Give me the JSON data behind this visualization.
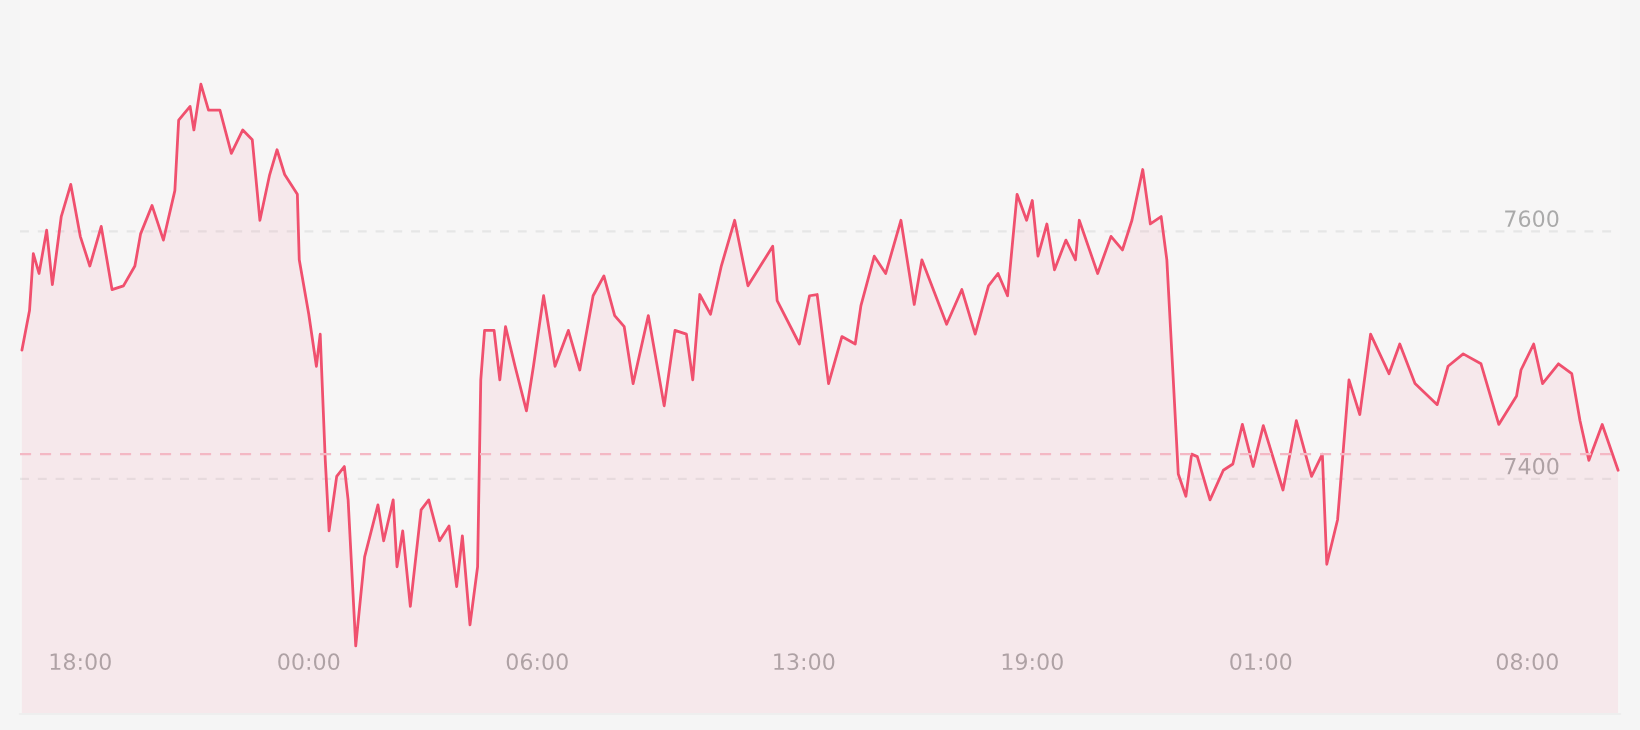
{
  "chart_data": {
    "type": "area",
    "x": [
      "2000-01-01T16:28",
      "2000-01-01T16:40",
      "2000-01-01T16:46",
      "2000-01-01T16:55",
      "2000-01-01T17:07",
      "2000-01-01T17:16",
      "2000-01-01T17:30",
      "2000-01-01T17:45",
      "2000-01-01T18:00",
      "2000-01-01T18:15",
      "2000-01-01T18:33",
      "2000-01-01T18:50",
      "2000-01-01T19:08",
      "2000-01-01T19:26",
      "2000-01-01T19:35",
      "2000-01-01T19:53",
      "2000-01-01T20:11",
      "2000-01-01T20:29",
      "2000-01-01T20:35",
      "2000-01-01T20:53",
      "2000-01-01T20:59",
      "2000-01-01T21:10",
      "2000-01-01T21:22",
      "2000-01-01T21:40",
      "2000-01-01T21:58",
      "2000-01-01T22:16",
      "2000-01-01T22:31",
      "2000-01-01T22:43",
      "2000-01-01T22:58",
      "2000-01-01T23:10",
      "2000-01-01T23:22",
      "2000-01-01T23:42",
      "2000-01-01T23:45",
      "2000-01-02T00:00",
      "2000-01-02T00:12",
      "2000-01-02T00:18",
      "2000-01-02T00:26",
      "2000-01-02T00:32",
      "2000-01-02T00:44",
      "2000-01-02T00:56",
      "2000-01-02T01:02",
      "2000-01-02T01:14",
      "2000-01-02T01:28",
      "2000-01-02T01:49",
      "2000-01-02T01:58",
      "2000-01-02T02:13",
      "2000-01-02T02:19",
      "2000-01-02T02:28",
      "2000-01-02T02:40",
      "2000-01-02T02:57",
      "2000-01-02T03:09",
      "2000-01-02T03:26",
      "2000-01-02T03:41",
      "2000-01-02T03:53",
      "2000-01-02T04:02",
      "2000-01-02T04:14",
      "2000-01-02T04:26",
      "2000-01-02T04:31",
      "2000-01-02T04:37",
      "2000-01-02T04:52",
      "2000-01-02T05:01",
      "2000-01-02T05:10",
      "2000-01-02T05:25",
      "2000-01-02T05:43",
      "2000-01-02T05:54",
      "2000-01-02T06:10",
      "2000-01-02T06:28",
      "2000-01-02T06:49",
      "2000-01-02T07:07",
      "2000-01-02T07:28",
      "2000-01-02T07:45",
      "2000-01-02T08:02",
      "2000-01-02T08:17",
      "2000-01-02T08:31",
      "2000-01-02T08:55",
      "2000-01-02T09:20",
      "2000-01-02T09:37",
      "2000-01-02T09:55",
      "2000-01-02T10:05",
      "2000-01-02T10:16",
      "2000-01-02T10:33",
      "2000-01-02T10:50",
      "2000-01-02T11:11",
      "2000-01-02T11:32",
      "2000-01-02T12:11",
      "2000-01-02T12:18",
      "2000-01-02T12:53",
      "2000-01-02T13:09",
      "2000-01-02T13:21",
      "2000-01-02T13:39",
      "2000-01-02T14:00",
      "2000-01-02T14:21",
      "2000-01-02T14:30",
      "2000-01-02T14:51",
      "2000-01-02T15:09",
      "2000-01-02T15:33",
      "2000-01-02T15:54",
      "2000-01-02T16:06",
      "2000-01-02T16:45",
      "2000-01-02T17:09",
      "2000-01-02T17:30",
      "2000-01-02T17:51",
      "2000-01-02T18:06",
      "2000-01-02T18:21",
      "2000-01-02T18:36",
      "2000-01-02T18:51",
      "2000-01-02T19:00",
      "2000-01-02T19:09",
      "2000-01-02T19:23",
      "2000-01-02T19:35",
      "2000-01-02T19:53",
      "2000-01-02T20:08",
      "2000-01-02T20:14",
      "2000-01-02T20:43",
      "2000-01-02T21:04",
      "2000-01-02T21:22",
      "2000-01-02T21:37",
      "2000-01-02T21:54",
      "2000-01-02T22:06",
      "2000-01-02T22:23",
      "2000-01-02T22:32",
      "2000-01-02T22:41",
      "2000-01-02T22:50",
      "2000-01-02T23:02",
      "2000-01-02T23:11",
      "2000-01-02T23:20",
      "2000-01-02T23:40",
      "2000-01-03T00:01",
      "2000-01-03T00:16",
      "2000-01-03T00:31",
      "2000-01-03T00:48",
      "2000-01-03T01:04",
      "2000-01-03T01:35",
      "2000-01-03T01:56",
      "2000-01-03T02:20",
      "2000-01-03T02:37",
      "2000-01-03T02:44",
      "2000-01-03T03:01",
      "2000-01-03T03:19",
      "2000-01-03T03:36",
      "2000-01-03T03:53",
      "2000-01-03T04:22",
      "2000-01-03T04:39",
      "2000-01-03T05:03",
      "2000-01-03T05:38",
      "2000-01-03T05:55",
      "2000-01-03T06:19",
      "2000-01-03T06:47",
      "2000-01-03T07:15",
      "2000-01-03T07:43",
      "2000-01-03T07:50",
      "2000-01-03T08:10",
      "2000-01-03T08:24",
      "2000-01-03T08:49",
      "2000-01-03T09:10",
      "2000-01-03T09:23",
      "2000-01-03T09:37",
      "2000-01-03T09:58",
      "2000-01-03T10:23"
    ],
    "series": [
      {
        "color": "#f0506e",
        "values": [
          7504,
          7536,
          7582,
          7566,
          7601,
          7557,
          7612,
          7638,
          7596,
          7572,
          7604,
          7553,
          7556,
          7572,
          7598,
          7621,
          7593,
          7633,
          7690,
          7701,
          7682,
          7719,
          7698,
          7698,
          7663,
          7682,
          7674,
          7609,
          7645,
          7666,
          7646,
          7630,
          7577,
          7533,
          7491,
          7517,
          7415,
          7358,
          7402,
          7410,
          7383,
          7265,
          7337,
          7379,
          7350,
          7383,
          7329,
          7358,
          7297,
          7375,
          7383,
          7350,
          7362,
          7313,
          7354,
          7282,
          7329,
          7480,
          7520,
          7520,
          7480,
          7523,
          7491,
          7455,
          7491,
          7548,
          7491,
          7520,
          7488,
          7548,
          7564,
          7532,
          7523,
          7477,
          7532,
          7459,
          7520,
          7517,
          7480,
          7549,
          7533,
          7572,
          7609,
          7556,
          7588,
          7544,
          7509,
          7548,
          7549,
          7477,
          7515,
          7509,
          7540,
          7580,
          7566,
          7609,
          7541,
          7577,
          7525,
          7553,
          7517,
          7556,
          7566,
          7548,
          7630,
          7609,
          7625,
          7580,
          7606,
          7569,
          7593,
          7577,
          7609,
          7566,
          7596,
          7585,
          7609,
          7650,
          7606,
          7612,
          7577,
          7491,
          7404,
          7386,
          7420,
          7418,
          7383,
          7407,
          7412,
          7444,
          7410,
          7443,
          7391,
          7447,
          7402,
          7420,
          7331,
          7367,
          7480,
          7452,
          7517,
          7485,
          7509,
          7477,
          7460,
          7491,
          7501,
          7493,
          7444,
          7467,
          7488,
          7509,
          7477,
          7493,
          7485,
          7447,
          7415,
          7444,
          7407
        ]
      }
    ],
    "xlim": [
      "2000-01-01T16:25",
      "2000-01-03T10:26"
    ],
    "ylim": [
      7210,
      7787
    ],
    "xticks": [
      {
        "value": "2000-01-01T18:00",
        "label": "18:00"
      },
      {
        "value": "2000-01-02T00:00",
        "label": "00:00"
      },
      {
        "value": "2000-01-02T06:00",
        "label": "06:00"
      },
      {
        "value": "2000-01-02T13:00",
        "label": "13:00"
      },
      {
        "value": "2000-01-02T19:00",
        "label": "19:00"
      },
      {
        "value": "2000-01-03T01:00",
        "label": "01:00"
      },
      {
        "value": "2000-01-03T08:00",
        "label": "08:00"
      }
    ],
    "yticks": [
      7400,
      7600
    ],
    "grid": "y",
    "ref_lines": [
      {
        "axis": "y",
        "value": 7420,
        "color": "#f4b8c4",
        "line_style": "dashed"
      }
    ]
  }
}
